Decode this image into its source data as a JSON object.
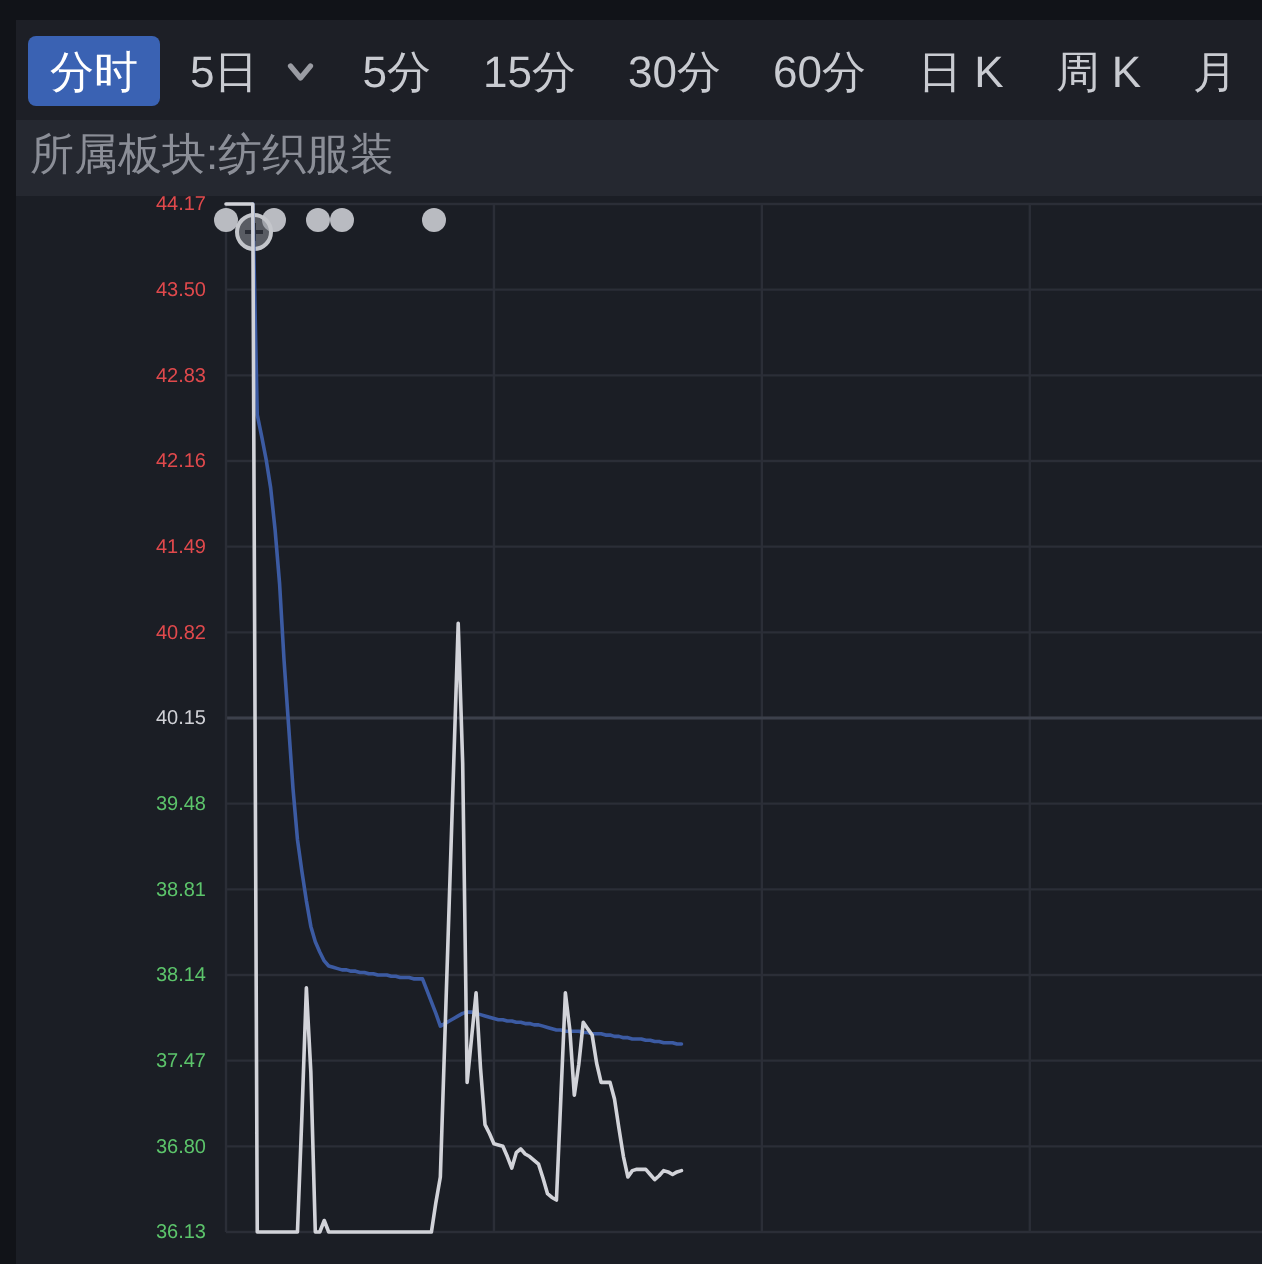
{
  "chart_data": {
    "type": "line",
    "title": "所属板块:纺织服装",
    "annotations": [
      "分时",
      "5日",
      "5分",
      "15分",
      "30分",
      "60分",
      "日 K",
      "周 K",
      "月"
    ],
    "categories": [
      null,
      null,
      null,
      null,
      null,
      null,
      null,
      null,
      null,
      null,
      null,
      null,
      null,
      null,
      null,
      null,
      null,
      null,
      null,
      null,
      null,
      null,
      null,
      null,
      null,
      null,
      null,
      null,
      null,
      null,
      null,
      null,
      null,
      null,
      null,
      null,
      null,
      null,
      null,
      null,
      null,
      null,
      null,
      null,
      null,
      null,
      null,
      null,
      null,
      null,
      null,
      null,
      null,
      null,
      null,
      null,
      null,
      null,
      null,
      null,
      null,
      null,
      null,
      null,
      null,
      null,
      null,
      null,
      null,
      null,
      null,
      null,
      null,
      null,
      null,
      null,
      null,
      null,
      null,
      null,
      null,
      null,
      null,
      null,
      null,
      null,
      null,
      null,
      null,
      null,
      null,
      null,
      null,
      null,
      null,
      null,
      null,
      null,
      null,
      null,
      null,
      null,
      null,
      null,
      null,
      null,
      null,
      null,
      null,
      null,
      null,
      null,
      null,
      null,
      null,
      null,
      null,
      null,
      null,
      null,
      null,
      null,
      null,
      null,
      null,
      null,
      null,
      null,
      null,
      null,
      null,
      null,
      null,
      null,
      null,
      null,
      null,
      null,
      null,
      null,
      null,
      null,
      null,
      null,
      null,
      null,
      null,
      null,
      null,
      null,
      null,
      null,
      null,
      null,
      null,
      null,
      null,
      null,
      null,
      null,
      null,
      null,
      null,
      null,
      null,
      null,
      null,
      null,
      null,
      null,
      null,
      null,
      null,
      null,
      null,
      null,
      null,
      null,
      null,
      null,
      null,
      null,
      null,
      null,
      null,
      null,
      null,
      null,
      null,
      null,
      null,
      null,
      null,
      null,
      null,
      null,
      null,
      null,
      null,
      null,
      null,
      null,
      null,
      null,
      null,
      null,
      null,
      null,
      null,
      null,
      null,
      null,
      null,
      null,
      null,
      null,
      null,
      null,
      null,
      null,
      null,
      null,
      null,
      null,
      null,
      null,
      null,
      null,
      null,
      null,
      null,
      null,
      null
    ],
    "series": [
      {
        "color": "#3c5ba3",
        "values": [
          null,
          null,
          null,
          null,
          null,
          null,
          44.17,
          42.52,
          42.35,
          42.17,
          41.95,
          41.62,
          41.2,
          40.6,
          40.1,
          39.6,
          39.2,
          38.95,
          38.72,
          38.52,
          38.4,
          38.32,
          38.25,
          38.21,
          38.2,
          38.19,
          38.18,
          38.18,
          38.17,
          38.17,
          38.16,
          38.16,
          38.15,
          38.15,
          38.14,
          38.14,
          38.14,
          38.13,
          38.13,
          38.12,
          38.12,
          38.12,
          38.11,
          38.11,
          38.11,
          38.02,
          37.93,
          37.84,
          37.74,
          37.76,
          37.78,
          37.8,
          37.82,
          37.84,
          37.85,
          37.85,
          37.84,
          37.83,
          37.82,
          37.81,
          37.8,
          37.79,
          37.79,
          37.78,
          37.78,
          37.77,
          37.77,
          37.76,
          37.76,
          37.75,
          37.75,
          37.74,
          37.73,
          37.72,
          37.71,
          37.71,
          37.7,
          37.7,
          37.7,
          37.7,
          37.69,
          37.69,
          37.68,
          37.68,
          37.68,
          37.67,
          37.67,
          37.66,
          37.66,
          37.65,
          37.65,
          37.64,
          37.64,
          37.64,
          37.63,
          37.63,
          37.62,
          37.62,
          37.61,
          37.61,
          37.61,
          37.6,
          37.6,
          null,
          null,
          null,
          null,
          null,
          null,
          null,
          null,
          null,
          null,
          null,
          null,
          null,
          null,
          null,
          null,
          null,
          null,
          null,
          null,
          null,
          null,
          null,
          null,
          null,
          null,
          null,
          null,
          null,
          null,
          null,
          null,
          null,
          null,
          null,
          null,
          null,
          null,
          null,
          null,
          null,
          null,
          null,
          null,
          null,
          null,
          null,
          null,
          null,
          null,
          null,
          null,
          null,
          null,
          null,
          null,
          null,
          null,
          null,
          null,
          null,
          null,
          null,
          null,
          null,
          null,
          null,
          null,
          null,
          null,
          null,
          null,
          null,
          null,
          null,
          null,
          null,
          null,
          null,
          null,
          null,
          null,
          null,
          null,
          null,
          null,
          null,
          null,
          null,
          null,
          null,
          null,
          null,
          null,
          null,
          null,
          null,
          null,
          null,
          null,
          null,
          null,
          null,
          null,
          null,
          null,
          null,
          null,
          null,
          null,
          null,
          null,
          null,
          null,
          null,
          null,
          null,
          null,
          null,
          null,
          null,
          null,
          null,
          null,
          null,
          null,
          null,
          null,
          null,
          null
        ]
      },
      {
        "color": "#d2d3d9",
        "values": [
          44.17,
          44.17,
          44.17,
          44.17,
          44.17,
          44.17,
          44.17,
          36.13,
          36.13,
          36.13,
          36.13,
          36.13,
          36.13,
          36.13,
          36.13,
          36.13,
          36.13,
          37.04,
          38.04,
          37.38,
          36.13,
          36.13,
          36.22,
          36.13,
          36.13,
          36.13,
          36.13,
          36.13,
          36.13,
          36.13,
          36.13,
          36.13,
          36.13,
          36.13,
          36.13,
          36.13,
          36.13,
          36.13,
          36.13,
          36.13,
          36.13,
          36.13,
          36.13,
          36.13,
          36.13,
          36.13,
          36.13,
          36.36,
          36.56,
          37.64,
          38.72,
          39.8,
          40.89,
          39.8,
          37.3,
          37.65,
          38.0,
          37.41,
          36.97,
          36.9,
          36.82,
          36.81,
          36.8,
          36.72,
          36.63,
          36.75,
          36.78,
          36.74,
          36.72,
          36.69,
          36.66,
          36.55,
          36.43,
          36.4,
          36.38,
          37.19,
          38.0,
          37.71,
          37.2,
          37.44,
          37.77,
          37.72,
          37.67,
          37.45,
          37.3,
          37.3,
          37.3,
          37.17,
          36.94,
          36.72,
          36.56,
          36.61,
          36.62,
          36.62,
          36.62,
          36.58,
          36.54,
          36.57,
          36.61,
          36.6,
          36.58,
          36.6,
          36.61,
          null,
          null,
          null,
          null,
          null,
          null,
          null,
          null,
          null,
          null,
          null,
          null,
          null,
          null,
          null,
          null,
          null,
          null,
          null,
          null,
          null,
          null,
          null,
          null,
          null,
          null,
          null,
          null,
          null,
          null,
          null,
          null,
          null,
          null,
          null,
          null,
          null,
          null,
          null,
          null,
          null,
          null,
          null,
          null,
          null,
          null,
          null,
          null,
          null,
          null,
          null,
          null,
          null,
          null,
          null,
          null,
          null,
          null,
          null,
          null,
          null,
          null,
          null,
          null,
          null,
          null,
          null,
          null,
          null,
          null,
          null,
          null,
          null,
          null,
          null,
          null,
          null,
          null,
          null,
          null,
          null,
          null,
          null,
          null,
          null,
          null,
          null,
          null,
          null,
          null,
          null,
          null,
          null,
          null,
          null,
          null,
          null,
          null,
          null,
          null,
          null,
          null,
          null,
          null,
          null,
          null,
          null,
          null,
          null,
          null,
          null,
          null,
          null,
          null,
          null,
          null,
          null,
          null,
          null,
          null,
          null,
          null,
          null,
          null,
          null,
          null,
          null,
          null,
          null,
          null
        ]
      }
    ],
    "ylim": [
      36.13,
      44.17
    ],
    "yticks": [
      36.13,
      {
        "value": 36.8,
        "label": "36.80"
      },
      37.47,
      38.14,
      38.81,
      39.48,
      40.15,
      40.82,
      41.49,
      42.16,
      42.83,
      {
        "value": 43.5,
        "label": "43.50"
      },
      44.17
    ],
    "grid": true,
    "ref_lines": [
      {
        "axis": "y",
        "value": 40.15,
        "color": "#3c404b"
      }
    ]
  }
}
